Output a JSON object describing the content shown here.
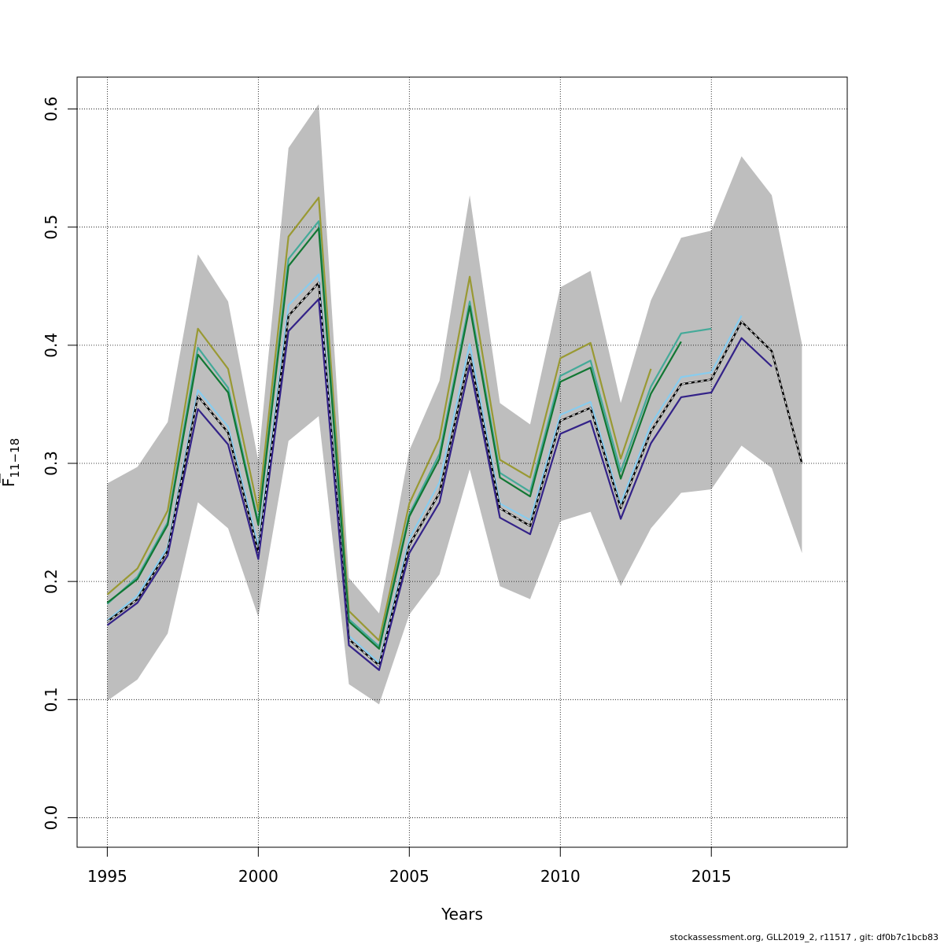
{
  "chart_data": {
    "type": "line",
    "xlabel": "Years",
    "ylabel": "F",
    "ylabel_subscript": "11−18",
    "footer": "stockassessment.org, GLL2019_2, r11517 , git: df0b7c1bcb83",
    "xlim": [
      1994,
      2019.5
    ],
    "ylim": [
      -0.025,
      0.627
    ],
    "x_ticks": [
      1995,
      2000,
      2005,
      2010,
      2015
    ],
    "y_ticks": [
      0.0,
      0.1,
      0.2,
      0.3,
      0.4,
      0.5,
      0.6
    ],
    "grid": true,
    "confidence_band": {
      "color": "#bebebe",
      "x": [
        1995,
        1996,
        1997,
        1998,
        1999,
        2000,
        2001,
        2002,
        2003,
        2004,
        2005,
        2006,
        2007,
        2008,
        2009,
        2010,
        2011,
        2012,
        2013,
        2014,
        2015,
        2016,
        2017,
        2018
      ],
      "lower": [
        0.099,
        0.117,
        0.156,
        0.267,
        0.245,
        0.17,
        0.319,
        0.34,
        0.113,
        0.096,
        0.172,
        0.206,
        0.295,
        0.196,
        0.185,
        0.251,
        0.259,
        0.196,
        0.245,
        0.275,
        0.278,
        0.315,
        0.296,
        0.224
      ],
      "upper": [
        0.283,
        0.297,
        0.335,
        0.477,
        0.437,
        0.302,
        0.567,
        0.604,
        0.203,
        0.173,
        0.311,
        0.37,
        0.527,
        0.351,
        0.333,
        0.449,
        0.463,
        0.351,
        0.438,
        0.491,
        0.497,
        0.56,
        0.527,
        0.401
      ]
    },
    "series": [
      {
        "color": "#999933",
        "x": [
          1995,
          1996,
          1997,
          1998,
          1999,
          2000,
          2001,
          2002,
          2003,
          2004,
          2005,
          2006,
          2007,
          2008,
          2009,
          2010,
          2011,
          2012,
          2013
        ],
        "values": [
          0.189,
          0.211,
          0.26,
          0.414,
          0.38,
          0.26,
          0.492,
          0.525,
          0.175,
          0.15,
          0.266,
          0.321,
          0.458,
          0.303,
          0.288,
          0.389,
          0.402,
          0.304,
          0.38
        ]
      },
      {
        "color": "#44AA99",
        "x": [
          1995,
          1996,
          1997,
          1998,
          1999,
          2000,
          2001,
          2002,
          2003,
          2004,
          2005,
          2006,
          2007,
          2008,
          2009,
          2010,
          2011,
          2012,
          2013,
          2014,
          2015
        ],
        "values": [
          0.181,
          0.204,
          0.25,
          0.398,
          0.364,
          0.25,
          0.473,
          0.505,
          0.168,
          0.145,
          0.257,
          0.308,
          0.437,
          0.292,
          0.276,
          0.374,
          0.387,
          0.293,
          0.365,
          0.41,
          0.414
        ]
      },
      {
        "color": "#117733",
        "x": [
          1995,
          1996,
          1997,
          1998,
          1999,
          2000,
          2001,
          2002,
          2003,
          2004,
          2005,
          2006,
          2007,
          2008,
          2009,
          2010,
          2011,
          2012,
          2013,
          2014
        ],
        "values": [
          0.182,
          0.202,
          0.248,
          0.392,
          0.36,
          0.248,
          0.467,
          0.499,
          0.166,
          0.143,
          0.255,
          0.304,
          0.433,
          0.288,
          0.272,
          0.369,
          0.381,
          0.287,
          0.359,
          0.403
        ]
      },
      {
        "color": "#88CCEE",
        "x": [
          1995,
          1996,
          1997,
          1998,
          1999,
          2000,
          2001,
          2002,
          2003,
          2004,
          2005,
          2006,
          2007,
          2008,
          2009,
          2010,
          2011,
          2012,
          2013,
          2014,
          2015,
          2016
        ],
        "values": [
          0.167,
          0.188,
          0.229,
          0.362,
          0.331,
          0.23,
          0.434,
          0.46,
          0.154,
          0.131,
          0.236,
          0.284,
          0.401,
          0.266,
          0.252,
          0.341,
          0.352,
          0.266,
          0.333,
          0.373,
          0.377,
          0.425
        ]
      },
      {
        "color": "#000000",
        "dashed": true,
        "x": [
          1995,
          1996,
          1997,
          1998,
          1999,
          2000,
          2001,
          2002,
          2003,
          2004,
          2005,
          2006,
          2007,
          2008,
          2009,
          2010,
          2011,
          2012,
          2013,
          2014,
          2015,
          2016,
          2017,
          2018
        ],
        "values": [
          0.166,
          0.185,
          0.226,
          0.357,
          0.326,
          0.225,
          0.425,
          0.453,
          0.151,
          0.129,
          0.231,
          0.275,
          0.392,
          0.262,
          0.247,
          0.336,
          0.347,
          0.262,
          0.327,
          0.367,
          0.371,
          0.42,
          0.395,
          0.3
        ]
      },
      {
        "color": "#332288",
        "x": [
          1995,
          1996,
          1997,
          1998,
          1999,
          2000,
          2001,
          2002,
          2003,
          2004,
          2005,
          2006,
          2007,
          2008,
          2009,
          2010,
          2011,
          2012,
          2013,
          2014,
          2015,
          2016,
          2017
        ],
        "values": [
          0.163,
          0.182,
          0.222,
          0.346,
          0.316,
          0.219,
          0.412,
          0.439,
          0.146,
          0.125,
          0.224,
          0.267,
          0.383,
          0.254,
          0.24,
          0.325,
          0.336,
          0.253,
          0.317,
          0.356,
          0.36,
          0.406,
          0.382
        ]
      }
    ]
  }
}
